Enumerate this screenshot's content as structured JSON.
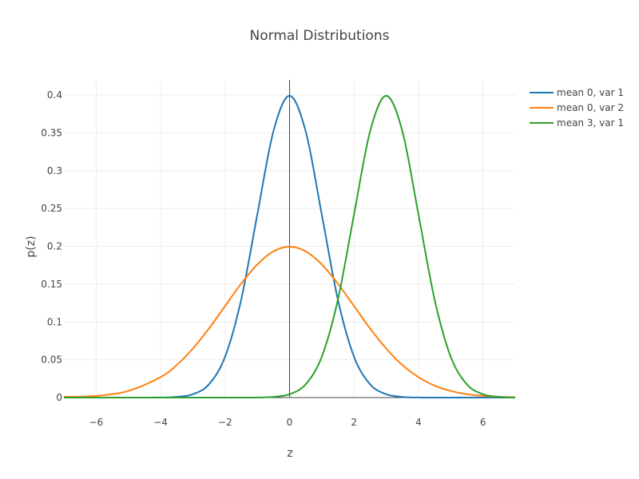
{
  "chart_data": {
    "type": "line",
    "title": "Normal Distributions",
    "xlabel": "z",
    "ylabel": "p(z)",
    "xlim": [
      -7,
      7
    ],
    "ylim": [
      0,
      0.42
    ],
    "grid": true,
    "legend_position": "top-right",
    "x_ticks": [
      {
        "value": -6,
        "label": "−6"
      },
      {
        "value": -4,
        "label": "−4"
      },
      {
        "value": -2,
        "label": "−2"
      },
      {
        "value": 0,
        "label": "0"
      },
      {
        "value": 2,
        "label": "2"
      },
      {
        "value": 4,
        "label": "4"
      },
      {
        "value": 6,
        "label": "6"
      }
    ],
    "y_ticks": [
      {
        "value": 0,
        "label": "0"
      },
      {
        "value": 0.05,
        "label": "0.05"
      },
      {
        "value": 0.1,
        "label": "0.1"
      },
      {
        "value": 0.15,
        "label": "0.15"
      },
      {
        "value": 0.2,
        "label": "0.2"
      },
      {
        "value": 0.25,
        "label": "0.25"
      },
      {
        "value": 0.3,
        "label": "0.3"
      },
      {
        "value": 0.35,
        "label": "0.35"
      },
      {
        "value": 0.4,
        "label": "0.4"
      }
    ],
    "x": [
      -7,
      -6,
      -5,
      -4,
      -3.5,
      -3,
      -2.5,
      -2,
      -1.5,
      -1,
      -0.5,
      0,
      0.5,
      1,
      1.5,
      2,
      2.5,
      3,
      3.5,
      4,
      4.5,
      5,
      5.5,
      6,
      6.5,
      7
    ],
    "series": [
      {
        "name": "mean 0, var 1",
        "color": "#1f77b4",
        "values": [
          0,
          0,
          0,
          0.0001,
          0.0009,
          0.0044,
          0.0175,
          0.054,
          0.1295,
          0.242,
          0.3521,
          0.3989,
          0.3521,
          0.242,
          0.1295,
          0.054,
          0.0175,
          0.0044,
          0.0009,
          0.0001,
          0,
          0,
          0,
          0,
          0,
          0
        ]
      },
      {
        "name": "mean 0, var 2",
        "color": "#ff7f0e",
        "values": [
          0.0009,
          0.0022,
          0.0088,
          0.027,
          0.043,
          0.0648,
          0.0913,
          0.121,
          0.1506,
          0.176,
          0.1933,
          0.1995,
          0.1933,
          0.176,
          0.1506,
          0.121,
          0.0913,
          0.0648,
          0.043,
          0.027,
          0.0158,
          0.0088,
          0.0045,
          0.0022,
          0.001,
          0.0004
        ]
      },
      {
        "name": "mean 3, var 1",
        "color": "#2ca02c",
        "values": [
          0,
          0,
          0,
          0,
          0,
          0,
          0,
          0,
          0,
          0.0001,
          0.0009,
          0.0044,
          0.0175,
          0.054,
          0.1295,
          0.242,
          0.3521,
          0.3989,
          0.3521,
          0.242,
          0.1295,
          0.054,
          0.0175,
          0.0044,
          0.0009,
          0.0001
        ]
      }
    ]
  }
}
